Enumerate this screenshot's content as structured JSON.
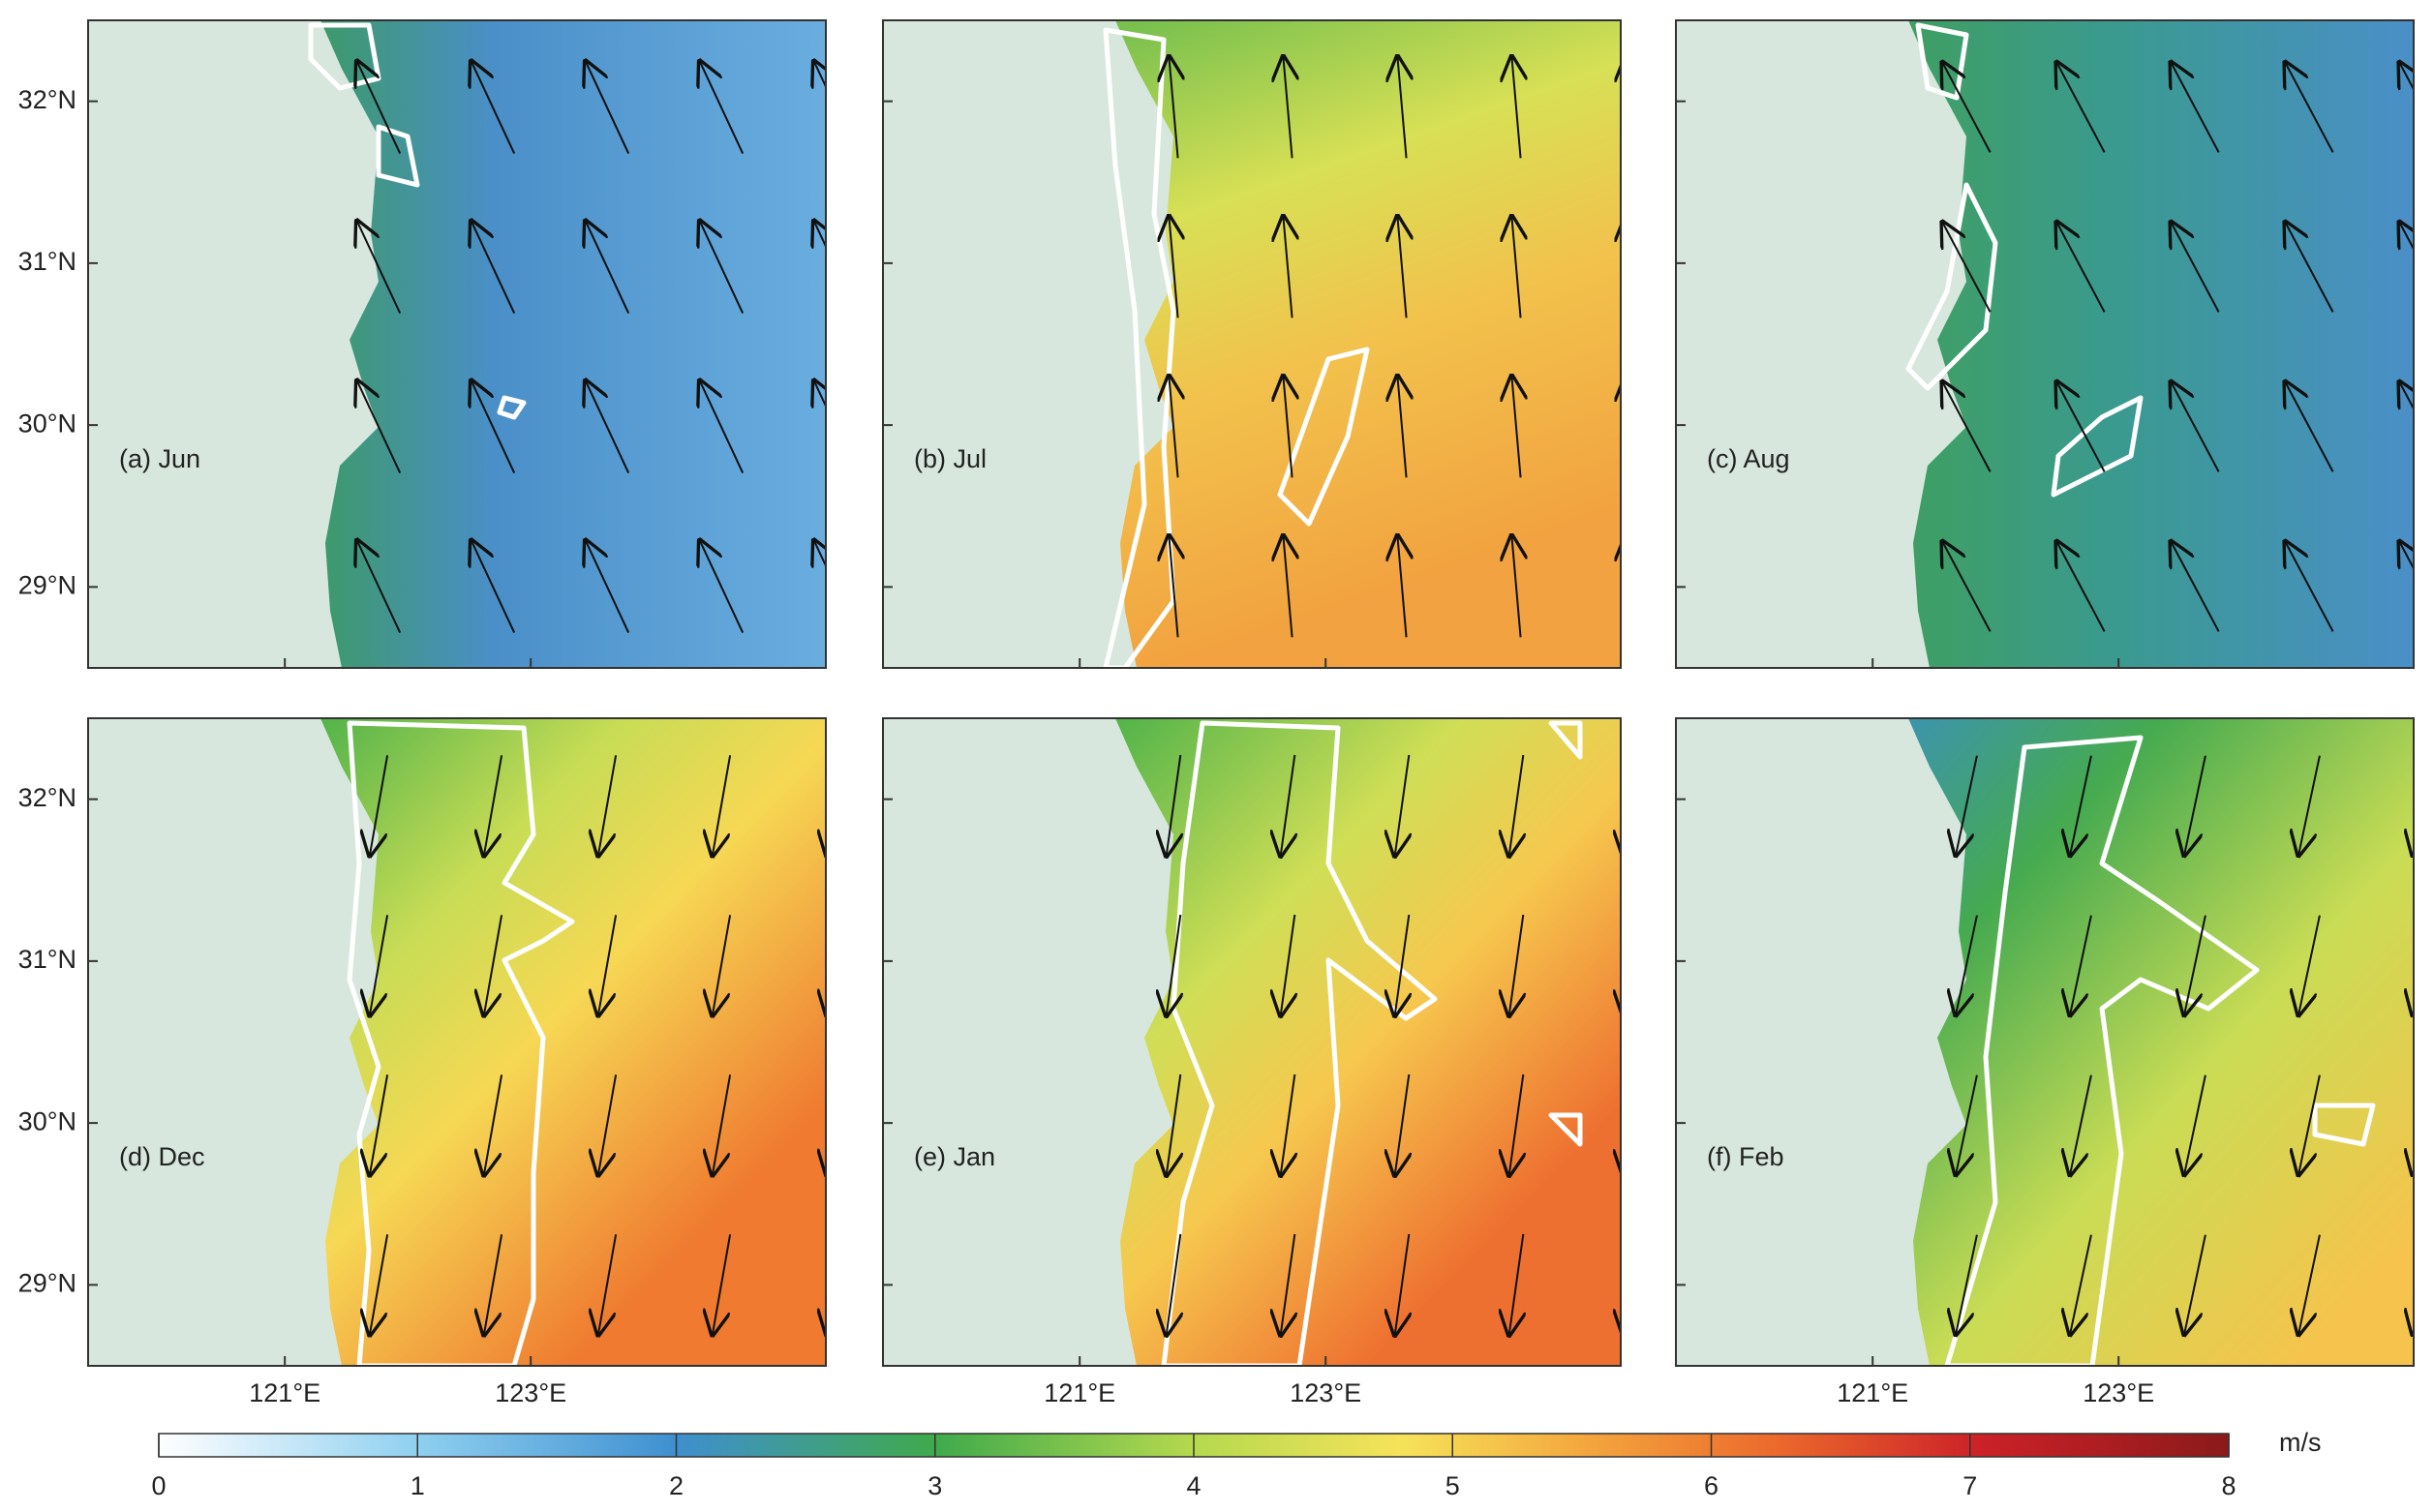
{
  "panels": [
    {
      "label": "(a) Jun"
    },
    {
      "label": "(b) Jul"
    },
    {
      "label": "(c) Aug"
    },
    {
      "label": "(d) Dec"
    },
    {
      "label": "(e) Jan"
    },
    {
      "label": "(f) Feb"
    }
  ],
  "lat_range": [
    28.5,
    32.5
  ],
  "lon_range": [
    119.4,
    125.4
  ],
  "lat_ticks": [
    {
      "value": 32,
      "label": "32°N"
    },
    {
      "value": 31,
      "label": "31°N"
    },
    {
      "value": 30,
      "label": "30°N"
    },
    {
      "value": 29,
      "label": "29°N"
    }
  ],
  "lon_ticks": [
    {
      "value": 121,
      "label": "121°E"
    },
    {
      "value": 123,
      "label": "123°E"
    }
  ],
  "colorbar": {
    "range": [
      0,
      8
    ],
    "ticks": [
      0,
      1,
      2,
      3,
      4,
      5,
      6,
      7,
      8
    ],
    "unit": "m/s"
  }
}
